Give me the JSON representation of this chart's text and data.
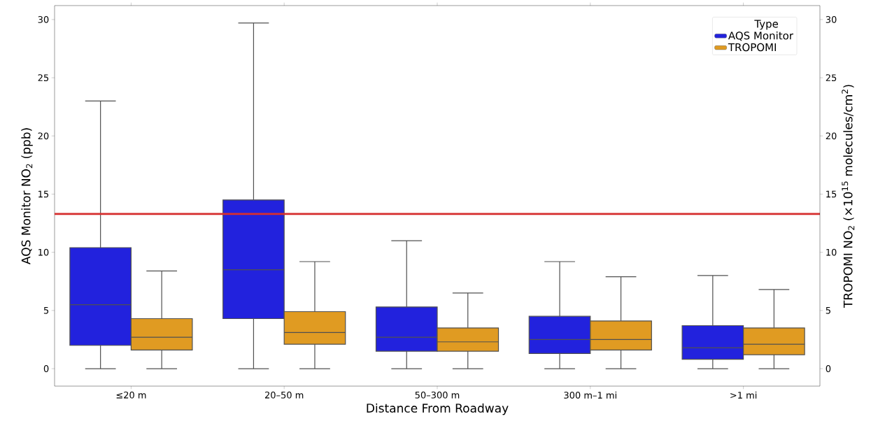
{
  "chart_data": {
    "type": "box",
    "xlabel": "Distance From Roadway",
    "ylabel": "AQS Monitor NO$_{2}$ (ppb)",
    "y2label": "TROPOMI NO$_{2}$ (×10$^{15}$ molecules/cm$^{2}$)",
    "legend_title": "Type",
    "legend": "top right",
    "categories": [
      "≤20 m",
      "20–50 m",
      "50–300 m",
      "300 m–1 mi",
      ">1 mi"
    ],
    "ylim": [
      -1.5,
      31.2
    ],
    "yticks": [
      0,
      5,
      10,
      15,
      20,
      25,
      30
    ],
    "y2lim": [
      -1.5,
      31.2
    ],
    "y2ticks": [
      0,
      5,
      10,
      15,
      20,
      25,
      30
    ],
    "series": [
      {
        "name": "AQS Monitor",
        "color": "#2222dd",
        "boxes": [
          {
            "low": 0,
            "q1": 2.0,
            "median": 5.5,
            "q3": 10.4,
            "high": 23.0
          },
          {
            "low": 0,
            "q1": 4.3,
            "median": 8.5,
            "q3": 14.5,
            "high": 29.7
          },
          {
            "low": 0,
            "q1": 1.5,
            "median": 2.7,
            "q3": 5.3,
            "high": 11.0
          },
          {
            "low": 0,
            "q1": 1.3,
            "median": 2.5,
            "q3": 4.5,
            "high": 9.2
          },
          {
            "low": 0,
            "q1": 0.8,
            "median": 1.8,
            "q3": 3.7,
            "high": 8.0
          }
        ]
      },
      {
        "name": "TROPOMI",
        "color": "#e09b22",
        "axis": "y2",
        "boxes": [
          {
            "low": 0,
            "q1": 1.6,
            "median": 2.7,
            "q3": 4.3,
            "high": 8.4
          },
          {
            "low": 0,
            "q1": 2.1,
            "median": 3.1,
            "q3": 4.9,
            "high": 9.2
          },
          {
            "low": 0,
            "q1": 1.5,
            "median": 2.3,
            "q3": 3.5,
            "high": 6.5
          },
          {
            "low": 0,
            "q1": 1.6,
            "median": 2.5,
            "q3": 4.1,
            "high": 7.9
          },
          {
            "low": 0,
            "q1": 1.2,
            "median": 2.1,
            "q3": 3.5,
            "high": 6.8
          }
        ]
      }
    ],
    "ref_lines": [
      {
        "axis": "y",
        "value": 13.3,
        "color": "#d62f2f"
      }
    ]
  }
}
